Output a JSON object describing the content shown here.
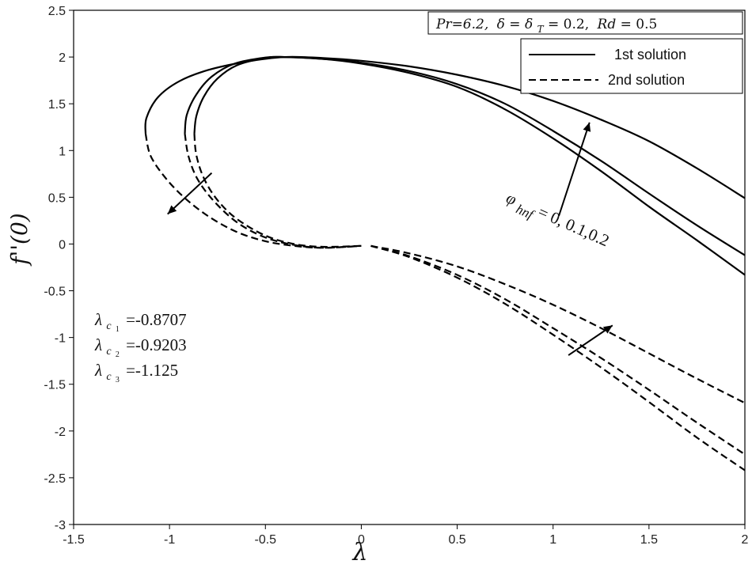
{
  "chart_data": {
    "type": "line",
    "xlabel": "λ",
    "ylabel": "f''(0)",
    "xlim": [
      -1.5,
      2
    ],
    "ylim": [
      -3,
      2.5
    ],
    "xticks": [
      "-1.5",
      "-1",
      "-0.5",
      "0",
      "0.5",
      "1",
      "1.5",
      "2"
    ],
    "yticks": [
      "-3",
      "-2.5",
      "-2",
      "-1.5",
      "-1",
      "-0.5",
      "0",
      "0.5",
      "1",
      "1.5",
      "2",
      "2.5"
    ],
    "grid": false,
    "params_box": {
      "pr": "Pr=6.2,",
      "delta": "δ = δ",
      "delta_sub": "T",
      "delta_val": " =  0.2,",
      "rd": "Rd",
      "rd_val": " = 0.5"
    },
    "legend": {
      "position": "top-right",
      "entries": [
        {
          "label": "1st solution",
          "style": "solid"
        },
        {
          "label": "2nd solution",
          "style": "dashed"
        }
      ]
    },
    "phi_annotation": {
      "symbol": "φ",
      "subscript": "hnf",
      "value_text": " = 0, 0.1,0.2"
    },
    "critical_values": [
      {
        "symbol": "λ",
        "sub": "c",
        "subsub": "1",
        "value": "=-0.8707"
      },
      {
        "symbol": "λ",
        "sub": "c",
        "subsub": "2",
        "value": "=-0.9203"
      },
      {
        "symbol": "λ",
        "sub": "c",
        "subsub": "3",
        "value": "=-1.125"
      }
    ],
    "series": [
      {
        "style": "solid",
        "points": [
          [
            -0.8707,
            1.18
          ],
          [
            -0.86,
            1.37
          ],
          [
            -0.82,
            1.58
          ],
          [
            -0.75,
            1.77
          ],
          [
            -0.65,
            1.91
          ],
          [
            -0.5,
            1.99
          ],
          [
            -0.4,
            2.0
          ],
          [
            -0.2,
            1.98
          ],
          [
            0,
            1.93
          ],
          [
            0.25,
            1.83
          ],
          [
            0.5,
            1.68
          ],
          [
            0.75,
            1.44
          ],
          [
            1,
            1.13
          ],
          [
            1.25,
            0.78
          ],
          [
            1.5,
            0.4
          ],
          [
            1.75,
            0.04
          ],
          [
            2,
            -0.33
          ]
        ]
      },
      {
        "style": "solid",
        "points": [
          [
            -0.9203,
            1.18
          ],
          [
            -0.91,
            1.38
          ],
          [
            -0.86,
            1.6
          ],
          [
            -0.78,
            1.79
          ],
          [
            -0.66,
            1.93
          ],
          [
            -0.5,
            1.995
          ],
          [
            -0.4,
            2.0
          ],
          [
            -0.2,
            1.98
          ],
          [
            0,
            1.94
          ],
          [
            0.25,
            1.85
          ],
          [
            0.5,
            1.71
          ],
          [
            0.75,
            1.5
          ],
          [
            1,
            1.21
          ],
          [
            1.25,
            0.89
          ],
          [
            1.5,
            0.54
          ],
          [
            1.75,
            0.2
          ],
          [
            2,
            -0.12
          ]
        ]
      },
      {
        "style": "solid",
        "points": [
          [
            -1.125,
            1.18
          ],
          [
            -1.12,
            1.35
          ],
          [
            -1.06,
            1.57
          ],
          [
            -0.95,
            1.74
          ],
          [
            -0.8,
            1.86
          ],
          [
            -0.6,
            1.95
          ],
          [
            -0.4,
            2.0
          ],
          [
            -0.2,
            1.99
          ],
          [
            0,
            1.96
          ],
          [
            0.25,
            1.9
          ],
          [
            0.5,
            1.81
          ],
          [
            0.75,
            1.69
          ],
          [
            1,
            1.53
          ],
          [
            1.25,
            1.33
          ],
          [
            1.5,
            1.1
          ],
          [
            1.75,
            0.81
          ],
          [
            2,
            0.49
          ]
        ]
      },
      {
        "style": "dashed",
        "points": [
          [
            -0.8707,
            1.18
          ],
          [
            -0.86,
            0.95
          ],
          [
            -0.82,
            0.7
          ],
          [
            -0.75,
            0.47
          ],
          [
            -0.65,
            0.27
          ],
          [
            -0.5,
            0.09
          ],
          [
            -0.35,
            0.0
          ],
          [
            -0.2,
            -0.03
          ],
          [
            0,
            -0.02
          ]
        ]
      },
      {
        "style": "dashed",
        "points": [
          [
            -0.9203,
            1.18
          ],
          [
            -0.9,
            0.93
          ],
          [
            -0.85,
            0.68
          ],
          [
            -0.76,
            0.44
          ],
          [
            -0.64,
            0.22
          ],
          [
            -0.5,
            0.07
          ],
          [
            -0.35,
            -0.01
          ],
          [
            -0.2,
            -0.04
          ],
          [
            0,
            -0.02
          ]
        ]
      },
      {
        "style": "dashed",
        "points": [
          [
            -1.125,
            1.18
          ],
          [
            -1.1,
            0.95
          ],
          [
            -1.03,
            0.73
          ],
          [
            -0.93,
            0.51
          ],
          [
            -0.8,
            0.3
          ],
          [
            -0.65,
            0.13
          ],
          [
            -0.5,
            0.03
          ],
          [
            -0.35,
            -0.02
          ],
          [
            -0.2,
            -0.04
          ],
          [
            0,
            -0.02
          ]
        ]
      },
      {
        "style": "dashed",
        "points": [
          [
            0.05,
            -0.02
          ],
          [
            0.25,
            -0.1
          ],
          [
            0.5,
            -0.24
          ],
          [
            0.75,
            -0.43
          ],
          [
            1,
            -0.65
          ],
          [
            1.25,
            -0.9
          ],
          [
            1.5,
            -1.17
          ],
          [
            1.75,
            -1.44
          ],
          [
            2,
            -1.7
          ]
        ]
      },
      {
        "style": "dashed",
        "points": [
          [
            0.05,
            -0.02
          ],
          [
            0.25,
            -0.13
          ],
          [
            0.5,
            -0.33
          ],
          [
            0.75,
            -0.59
          ],
          [
            1,
            -0.9
          ],
          [
            1.25,
            -1.22
          ],
          [
            1.5,
            -1.56
          ],
          [
            1.75,
            -1.91
          ],
          [
            2,
            -2.25
          ]
        ]
      },
      {
        "style": "dashed",
        "points": [
          [
            0.05,
            -0.02
          ],
          [
            0.25,
            -0.14
          ],
          [
            0.5,
            -0.36
          ],
          [
            0.75,
            -0.64
          ],
          [
            1,
            -0.97
          ],
          [
            1.25,
            -1.32
          ],
          [
            1.5,
            -1.69
          ],
          [
            1.75,
            -2.07
          ],
          [
            2,
            -2.42
          ]
        ]
      }
    ]
  }
}
